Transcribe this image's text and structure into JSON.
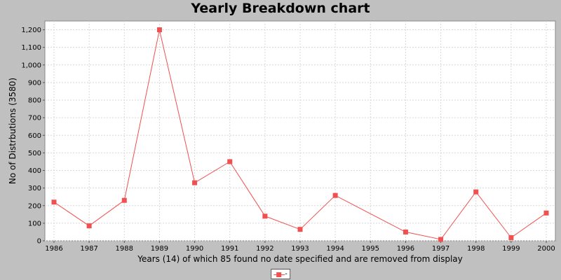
{
  "chart_data": {
    "type": "line",
    "title": "Yearly Breakdown chart",
    "xlabel": "Years (14) of which 85 found no date specified and are removed from display",
    "ylabel": "No of Distrbutions (3580)",
    "categories": [
      "1986",
      "1987",
      "1988",
      "1989",
      "1990",
      "1991",
      "1992",
      "1993",
      "1994",
      "1995",
      "1996",
      "1997",
      "1998",
      "1999",
      "2000"
    ],
    "series": [
      {
        "name": "-",
        "color": "#f05050",
        "points": [
          {
            "x": "1986",
            "y": 220
          },
          {
            "x": "1987",
            "y": 85
          },
          {
            "x": "1988",
            "y": 230
          },
          {
            "x": "1989",
            "y": 1200
          },
          {
            "x": "1990",
            "y": 330
          },
          {
            "x": "1991",
            "y": 450
          },
          {
            "x": "1992",
            "y": 140
          },
          {
            "x": "1993",
            "y": 65
          },
          {
            "x": "1994",
            "y": 258
          },
          {
            "x": "1996",
            "y": 50
          },
          {
            "x": "1997",
            "y": 8
          },
          {
            "x": "1998",
            "y": 278
          },
          {
            "x": "1999",
            "y": 18
          },
          {
            "x": "2000",
            "y": 158
          }
        ]
      }
    ],
    "ylim": [
      0,
      1250
    ],
    "yticks": [
      0,
      100,
      200,
      300,
      400,
      500,
      600,
      700,
      800,
      900,
      1000,
      1100,
      1200
    ],
    "ytick_labels": [
      "0",
      "100",
      "200",
      "300",
      "400",
      "500",
      "600",
      "700",
      "800",
      "900",
      "1,000",
      "1,100",
      "1,200"
    ],
    "grid": true,
    "legend_position": "bottom-center"
  }
}
